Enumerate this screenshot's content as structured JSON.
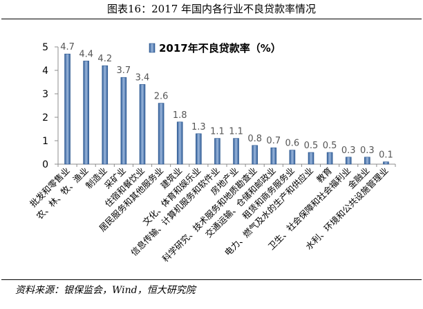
{
  "title": "图表16：2017 年国内各行业不良贷款率情况",
  "source": "资料来源：银保监会，Wind，恒大研究院",
  "colors": {
    "bar_light": "#9cb7dc",
    "bar_dark": "#2f5d98",
    "axis": "#8c8c8c"
  },
  "chart_data": {
    "type": "bar",
    "categories": [
      "批发和零售业",
      "农、林、牧、渔业",
      "制造业",
      "采矿业",
      "住宿和餐饮业",
      "居民服务和其他服务业",
      "建筑业",
      "文化、体育和娱乐业",
      "信息传输、计算机服务和软件业",
      "房地产业",
      "科学研究、技术服务和地质勘查业",
      "交通运输、仓储和邮政业",
      "租赁和商务服务业",
      "电力、燃气及水的生产和供应业",
      "教育",
      "卫生、社会保障和社会福利业",
      "金融业",
      "水利、环境和公共设施管理业"
    ],
    "series": [
      {
        "name": "2017年不良贷款率（%）",
        "values": [
          4.7,
          4.4,
          4.2,
          3.7,
          3.4,
          2.6,
          1.8,
          1.3,
          1.1,
          1.1,
          0.8,
          0.7,
          0.6,
          0.5,
          0.5,
          0.3,
          0.3,
          0.1
        ]
      }
    ],
    "title": "",
    "xlabel": "",
    "ylabel": "",
    "ylim": [
      0,
      5
    ],
    "yticks": [
      0,
      1,
      2,
      3,
      4,
      5
    ],
    "legend": "top-right",
    "grid": false
  }
}
